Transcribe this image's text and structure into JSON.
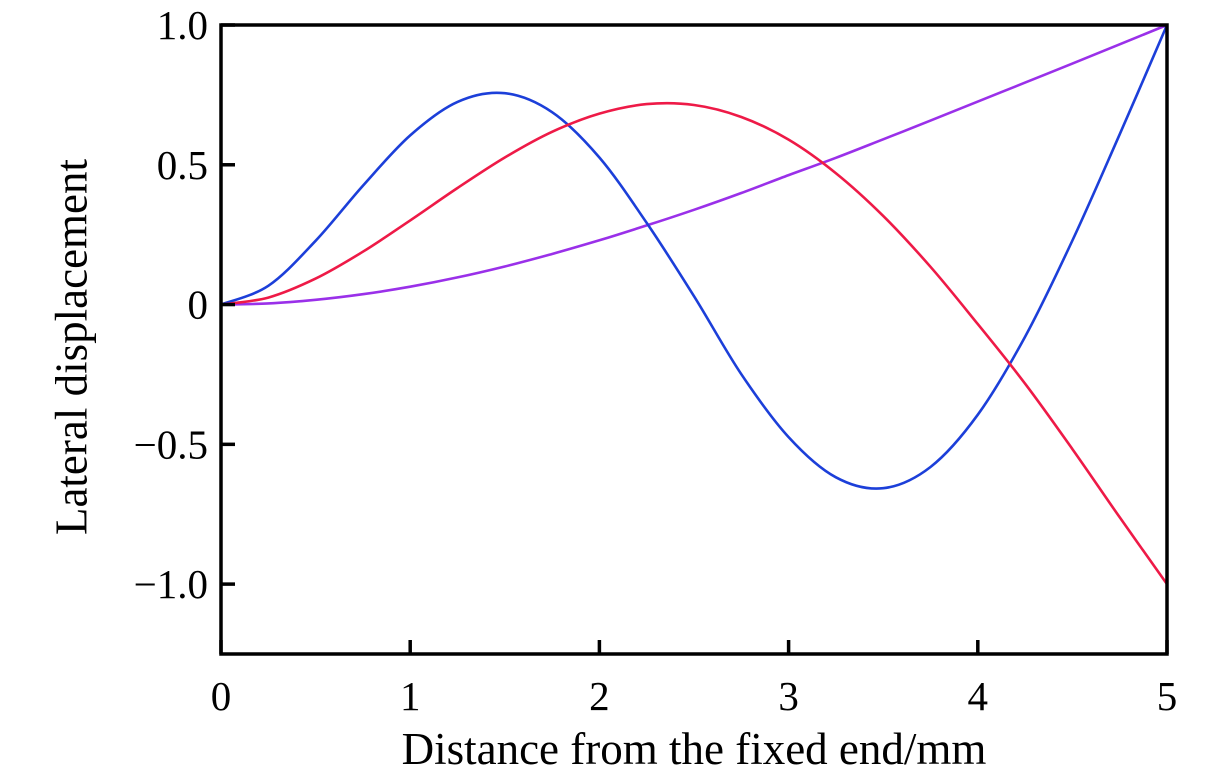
{
  "figure": {
    "background": "#ffffff",
    "frame_color": "#000000",
    "text_color": "#000000"
  },
  "chart_data": {
    "type": "line",
    "title": "",
    "xlabel": "Distance from the fixed end/mm",
    "ylabel": "Lateral displacement",
    "xlim": [
      0,
      5
    ],
    "ylim": [
      -1.25,
      1.0
    ],
    "x_ticks": [
      0,
      1,
      2,
      3,
      4,
      5
    ],
    "x_tick_labels": [
      "0",
      "1",
      "2",
      "3",
      "4",
      "5"
    ],
    "y_ticks": [
      1.0,
      0.5,
      0,
      -0.5,
      -1.0
    ],
    "y_tick_labels": [
      "1.0",
      "0.5",
      "0",
      "−0.5",
      "−1.0"
    ],
    "grid": false,
    "legend": "none",
    "x": [
      0,
      0.25,
      0.5,
      0.75,
      1.0,
      1.25,
      1.5,
      1.75,
      2.0,
      2.25,
      2.5,
      2.75,
      3.0,
      3.25,
      3.5,
      3.75,
      4.0,
      4.25,
      4.5,
      4.75,
      5.0
    ],
    "series": [
      {
        "name": "mode-shape-purple",
        "color": "#9A30E9",
        "values": [
          0,
          0.004,
          0.017,
          0.037,
          0.064,
          0.097,
          0.136,
          0.181,
          0.23,
          0.283,
          0.339,
          0.399,
          0.463,
          0.525,
          0.591,
          0.658,
          0.726,
          0.794,
          0.862,
          0.931,
          1.0
        ]
      },
      {
        "name": "mode-shape-blue",
        "color": "#1C3FD9",
        "values": [
          0,
          0.067,
          0.228,
          0.425,
          0.605,
          0.725,
          0.756,
          0.688,
          0.526,
          0.292,
          0.03,
          -0.249,
          -0.474,
          -0.618,
          -0.657,
          -0.581,
          -0.394,
          -0.115,
          0.229,
          0.609,
          1.0
        ]
      },
      {
        "name": "mode-shape-red",
        "color": "#EE1A47",
        "values": [
          0,
          0.025,
          0.093,
          0.189,
          0.301,
          0.417,
          0.526,
          0.618,
          0.683,
          0.717,
          0.714,
          0.671,
          0.59,
          0.47,
          0.317,
          0.135,
          -0.07,
          -0.283,
          -0.517,
          -0.761,
          -1.0
        ]
      }
    ]
  }
}
